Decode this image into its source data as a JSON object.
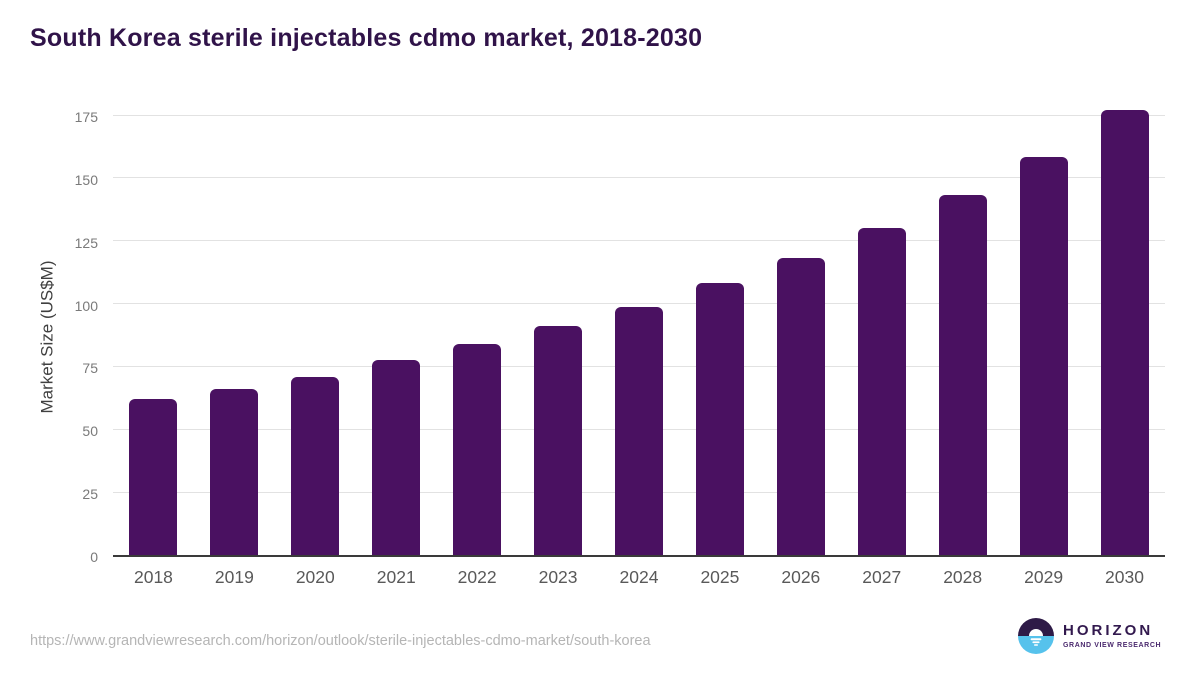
{
  "chart_data": {
    "type": "bar",
    "title": "South Korea sterile injectables cdmo market, 2018-2030",
    "categories": [
      "2018",
      "2019",
      "2020",
      "2021",
      "2022",
      "2023",
      "2024",
      "2025",
      "2026",
      "2027",
      "2028",
      "2029",
      "2030"
    ],
    "values": [
      62,
      66,
      71,
      77.5,
      84,
      91,
      98.5,
      108,
      118,
      130,
      143,
      158.5,
      177
    ],
    "xlabel": "",
    "ylabel": "Market Size (US$M)",
    "ylim": [
      0,
      175
    ],
    "yticks": [
      0,
      25,
      50,
      75,
      100,
      125,
      150,
      175
    ],
    "grid": true,
    "legend": "none",
    "bar_color": "#4a1161"
  },
  "colors": {
    "title": "#301349",
    "bar": "#4a1161",
    "gridline": "#e2e2e2",
    "axis_line": "#3a3a3a",
    "y_tick_text": "#7a7a7a",
    "x_tick_text": "#595959",
    "url_text": "#b5b5b5",
    "logo_purple": "#2e1a47",
    "logo_blue": "#56c2ec"
  },
  "footer": {
    "source_url": "https://www.grandviewresearch.com/horizon/outlook/sterile-injectables-cdmo-market/south-korea",
    "logo": {
      "name": "HORIZON",
      "subtitle": "GRAND VIEW RESEARCH"
    }
  }
}
